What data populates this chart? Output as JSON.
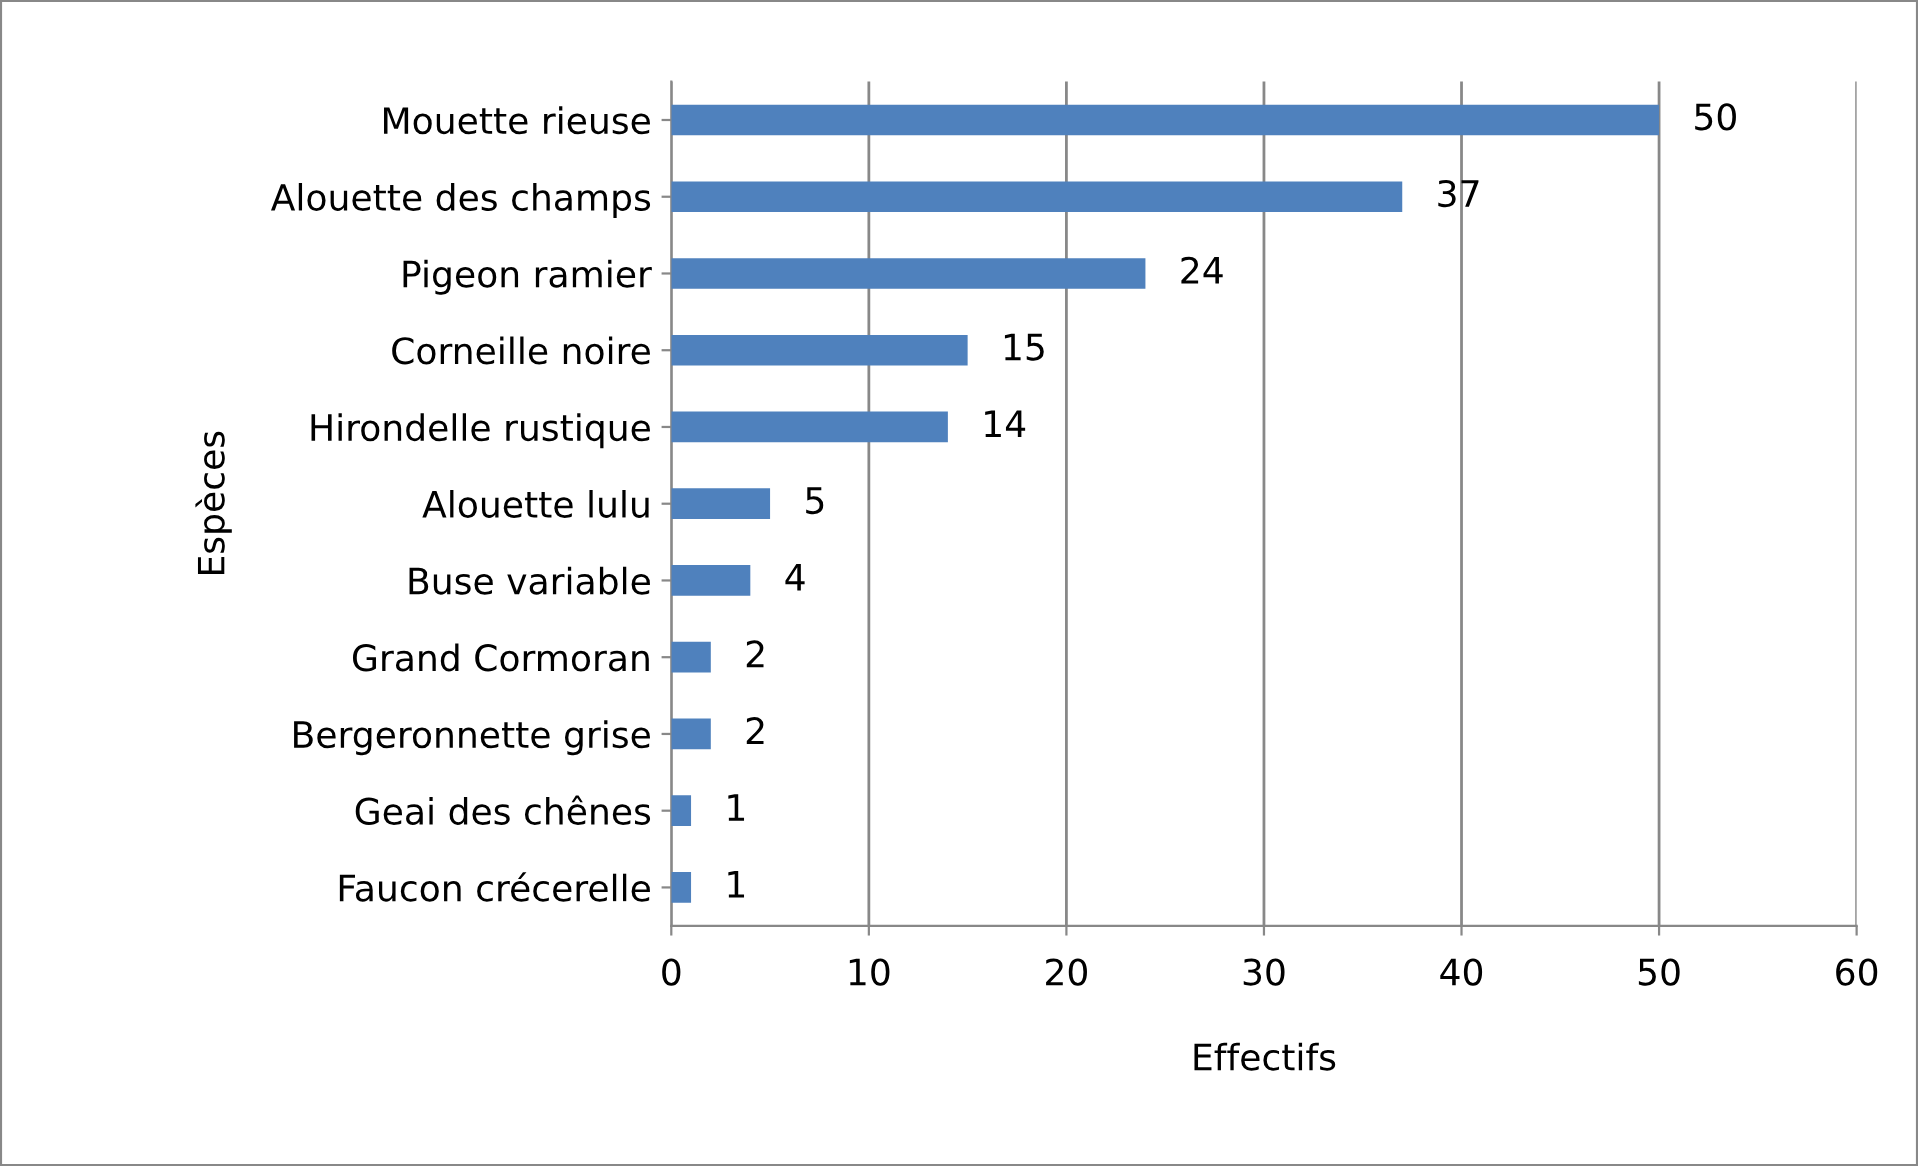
{
  "chart_data": {
    "type": "bar",
    "orientation": "horizontal",
    "xlabel": "Effectifs",
    "ylabel": "Espèces",
    "categories": [
      "Mouette rieuse",
      "Alouette des champs",
      "Pigeon ramier",
      "Corneille noire",
      "Hirondelle rustique",
      "Alouette lulu",
      "Buse variable",
      "Grand Cormoran",
      "Bergeronnette grise",
      "Geai des chênes",
      "Faucon crécerelle"
    ],
    "values": [
      50,
      37,
      24,
      15,
      14,
      5,
      4,
      2,
      2,
      1,
      1
    ],
    "color": "#4f81bd",
    "xlim": [
      0,
      60
    ],
    "xticks": [
      0,
      10,
      20,
      30,
      40,
      50,
      60
    ],
    "grid": "x",
    "data_labels": true
  }
}
